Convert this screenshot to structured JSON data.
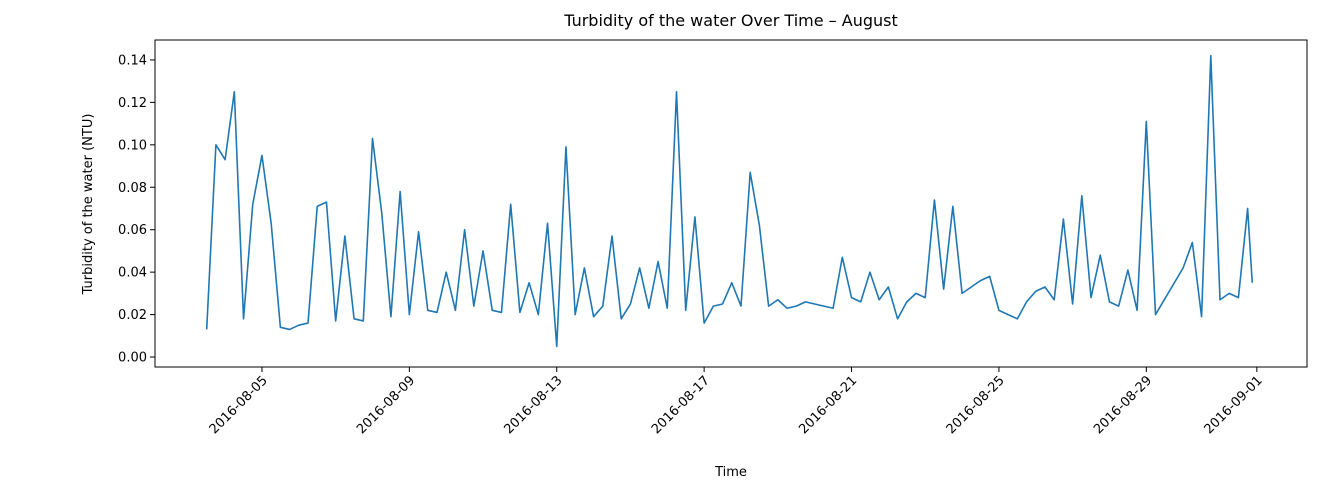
{
  "chart_data": {
    "type": "line",
    "title": "Turbidity of the water Over Time – August",
    "x_label": "Time",
    "y_label": "Turbidity of the water (NTU)",
    "x": [
      "2016-08-03T12:00",
      "2016-08-03T18:00",
      "2016-08-04T00:00",
      "2016-08-04T06:00",
      "2016-08-04T12:00",
      "2016-08-04T18:00",
      "2016-08-05T00:00",
      "2016-08-05T06:00",
      "2016-08-05T12:00",
      "2016-08-05T18:00",
      "2016-08-06T00:00",
      "2016-08-06T06:00",
      "2016-08-06T12:00",
      "2016-08-06T18:00",
      "2016-08-07T00:00",
      "2016-08-07T06:00",
      "2016-08-07T12:00",
      "2016-08-07T18:00",
      "2016-08-08T00:00",
      "2016-08-08T06:00",
      "2016-08-08T12:00",
      "2016-08-08T18:00",
      "2016-08-09T00:00",
      "2016-08-09T06:00",
      "2016-08-09T12:00",
      "2016-08-09T18:00",
      "2016-08-10T00:00",
      "2016-08-10T06:00",
      "2016-08-10T12:00",
      "2016-08-10T18:00",
      "2016-08-11T00:00",
      "2016-08-11T06:00",
      "2016-08-11T12:00",
      "2016-08-11T18:00",
      "2016-08-12T00:00",
      "2016-08-12T06:00",
      "2016-08-12T12:00",
      "2016-08-12T18:00",
      "2016-08-13T00:00",
      "2016-08-13T06:00",
      "2016-08-13T12:00",
      "2016-08-13T18:00",
      "2016-08-14T00:00",
      "2016-08-14T06:00",
      "2016-08-14T12:00",
      "2016-08-14T18:00",
      "2016-08-15T00:00",
      "2016-08-15T06:00",
      "2016-08-15T12:00",
      "2016-08-15T18:00",
      "2016-08-16T00:00",
      "2016-08-16T06:00",
      "2016-08-16T12:00",
      "2016-08-16T18:00",
      "2016-08-17T00:00",
      "2016-08-17T06:00",
      "2016-08-17T12:00",
      "2016-08-17T18:00",
      "2016-08-18T00:00",
      "2016-08-18T06:00",
      "2016-08-18T12:00",
      "2016-08-18T18:00",
      "2016-08-19T00:00",
      "2016-08-19T06:00",
      "2016-08-19T12:00",
      "2016-08-19T18:00",
      "2016-08-20T00:00",
      "2016-08-20T06:00",
      "2016-08-20T12:00",
      "2016-08-20T18:00",
      "2016-08-21T00:00",
      "2016-08-21T06:00",
      "2016-08-21T12:00",
      "2016-08-21T18:00",
      "2016-08-22T00:00",
      "2016-08-22T06:00",
      "2016-08-22T12:00",
      "2016-08-22T18:00",
      "2016-08-23T00:00",
      "2016-08-23T06:00",
      "2016-08-23T12:00",
      "2016-08-23T18:00",
      "2016-08-24T00:00",
      "2016-08-24T06:00",
      "2016-08-24T12:00",
      "2016-08-24T18:00",
      "2016-08-25T00:00",
      "2016-08-25T06:00",
      "2016-08-25T12:00",
      "2016-08-25T18:00",
      "2016-08-26T00:00",
      "2016-08-26T06:00",
      "2016-08-26T12:00",
      "2016-08-26T18:00",
      "2016-08-27T00:00",
      "2016-08-27T06:00",
      "2016-08-27T12:00",
      "2016-08-27T18:00",
      "2016-08-28T00:00",
      "2016-08-28T06:00",
      "2016-08-28T12:00",
      "2016-08-28T18:00",
      "2016-08-29T00:00",
      "2016-08-29T06:00",
      "2016-08-30T00:00",
      "2016-08-30T06:00",
      "2016-08-30T12:00",
      "2016-08-30T18:00",
      "2016-08-31T00:00",
      "2016-08-31T06:00",
      "2016-08-31T12:00",
      "2016-08-31T18:00",
      "2016-08-31T21:00"
    ],
    "series": [
      {
        "name": "Turbidity of the water",
        "color": "#1f77b4",
        "values": [
          0.013,
          0.1,
          0.093,
          0.125,
          0.018,
          0.072,
          0.095,
          0.063,
          0.014,
          0.013,
          0.015,
          0.016,
          0.071,
          0.073,
          0.017,
          0.057,
          0.018,
          0.017,
          0.103,
          0.068,
          0.019,
          0.078,
          0.02,
          0.059,
          0.022,
          0.021,
          0.04,
          0.022,
          0.06,
          0.024,
          0.05,
          0.022,
          0.021,
          0.072,
          0.021,
          0.035,
          0.02,
          0.063,
          0.005,
          0.099,
          0.02,
          0.042,
          0.019,
          0.024,
          0.057,
          0.018,
          0.025,
          0.042,
          0.023,
          0.045,
          0.023,
          0.125,
          0.022,
          0.066,
          0.016,
          0.024,
          0.025,
          0.035,
          0.024,
          0.087,
          0.062,
          0.024,
          0.027,
          0.023,
          0.024,
          0.026,
          0.025,
          0.024,
          0.023,
          0.047,
          0.028,
          0.026,
          0.04,
          0.027,
          0.033,
          0.018,
          0.026,
          0.03,
          0.028,
          0.074,
          0.032,
          0.071,
          0.03,
          0.033,
          0.036,
          0.038,
          0.022,
          0.02,
          0.018,
          0.026,
          0.031,
          0.033,
          0.027,
          0.065,
          0.025,
          0.076,
          0.028,
          0.048,
          0.026,
          0.024,
          0.041,
          0.022,
          0.111,
          0.02,
          0.042,
          0.054,
          0.019,
          0.142,
          0.027,
          0.03,
          0.028,
          0.07,
          0.035
        ]
      }
    ],
    "xlim": [
      "2016-08-02T02:20",
      "2016-09-02T08:40"
    ],
    "xticks": [
      "2016-08-05",
      "2016-08-09",
      "2016-08-13",
      "2016-08-17",
      "2016-08-21",
      "2016-08-25",
      "2016-08-29",
      "2016-09-01"
    ],
    "ylim": [
      -0.0047,
      0.1494
    ],
    "yticks": [
      {
        "value": 0,
        "label": "0.00"
      },
      {
        "value": 0.02,
        "label": "0.02"
      },
      {
        "value": 0.04,
        "label": "0.04"
      },
      {
        "value": 0.06,
        "label": "0.06"
      },
      {
        "value": 0.08,
        "label": "0.08"
      },
      {
        "value": 0.1,
        "label": "0.10"
      },
      {
        "value": 0.12,
        "label": "0.12"
      },
      {
        "value": 0.14,
        "label": "0.14"
      }
    ],
    "grid": false
  }
}
